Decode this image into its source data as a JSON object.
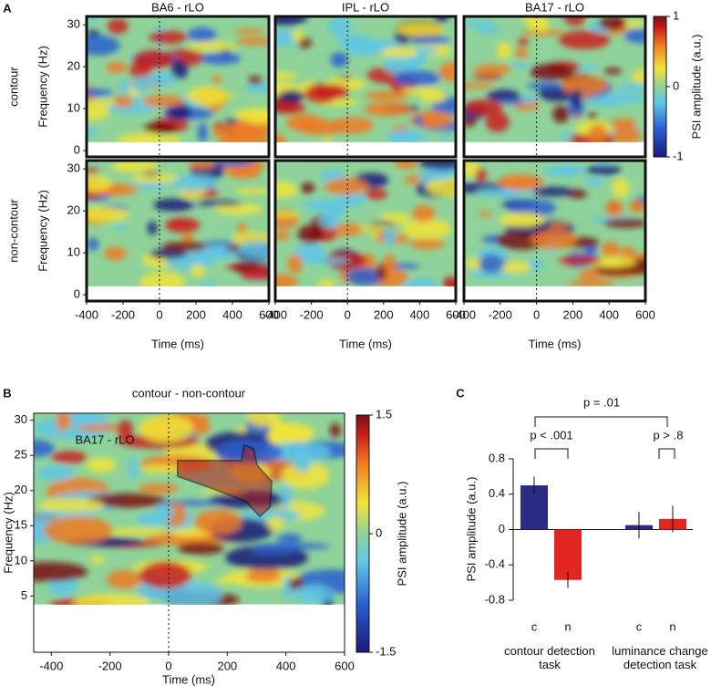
{
  "panel_labels": [
    "A",
    "B",
    "C"
  ],
  "chart_data": [
    {
      "type": "heatmap-grid",
      "col_titles": [
        "BA6 - rLO",
        "IPL - rLO",
        "BA17 - rLO"
      ],
      "row_titles": [
        "contour",
        "non-contour"
      ],
      "ylabel": "Frequency (Hz)",
      "xlabel": "Time (ms)",
      "xlim": [
        -400,
        600
      ],
      "xticks": [
        -400,
        -200,
        0,
        200,
        400,
        600
      ],
      "ylim": [
        -1.5,
        32
      ],
      "yticks": [
        0,
        10,
        20,
        30
      ],
      "colorbar": {
        "label": "PSI amplitude (a.u.)",
        "lim": [
          -1,
          1
        ],
        "ticks": [
          -1,
          0,
          1
        ]
      }
    },
    {
      "type": "heatmap",
      "title": "contour - non-contour",
      "annotation": "BA17 - rLO",
      "xlabel": "Time (ms)",
      "ylabel": "Frequency (Hz)",
      "xlim": [
        -460,
        600
      ],
      "xticks": [
        -400,
        -200,
        0,
        200,
        400,
        600
      ],
      "ylim": [
        -3,
        31
      ],
      "yticks": [
        5,
        10,
        15,
        20,
        25,
        30
      ],
      "colorbar": {
        "label": "PSI amplitude (a.u.)",
        "lim": [
          -1.5,
          1.5
        ],
        "ticks": [
          -1.5,
          0,
          1.5
        ]
      }
    },
    {
      "type": "bar",
      "ylabel": "PSI amplitude (a.u.)",
      "categories": [
        "c",
        "n",
        "c",
        "n"
      ],
      "values": [
        0.5,
        -0.57,
        0.05,
        0.12
      ],
      "errors": [
        0.1,
        0.09,
        0.15,
        0.15
      ],
      "colors": [
        "#2b2b86",
        "#e2251f",
        "#2b2b86",
        "#e2251f"
      ],
      "groups": [
        "contour detection task",
        "luminance change detection task"
      ],
      "comparisons": [
        "p = .01",
        "p < .001",
        "p > .8"
      ],
      "ylim": [
        -0.8,
        0.8
      ],
      "yticks": [
        -0.8,
        -0.4,
        0,
        0.4,
        0.8
      ]
    }
  ]
}
